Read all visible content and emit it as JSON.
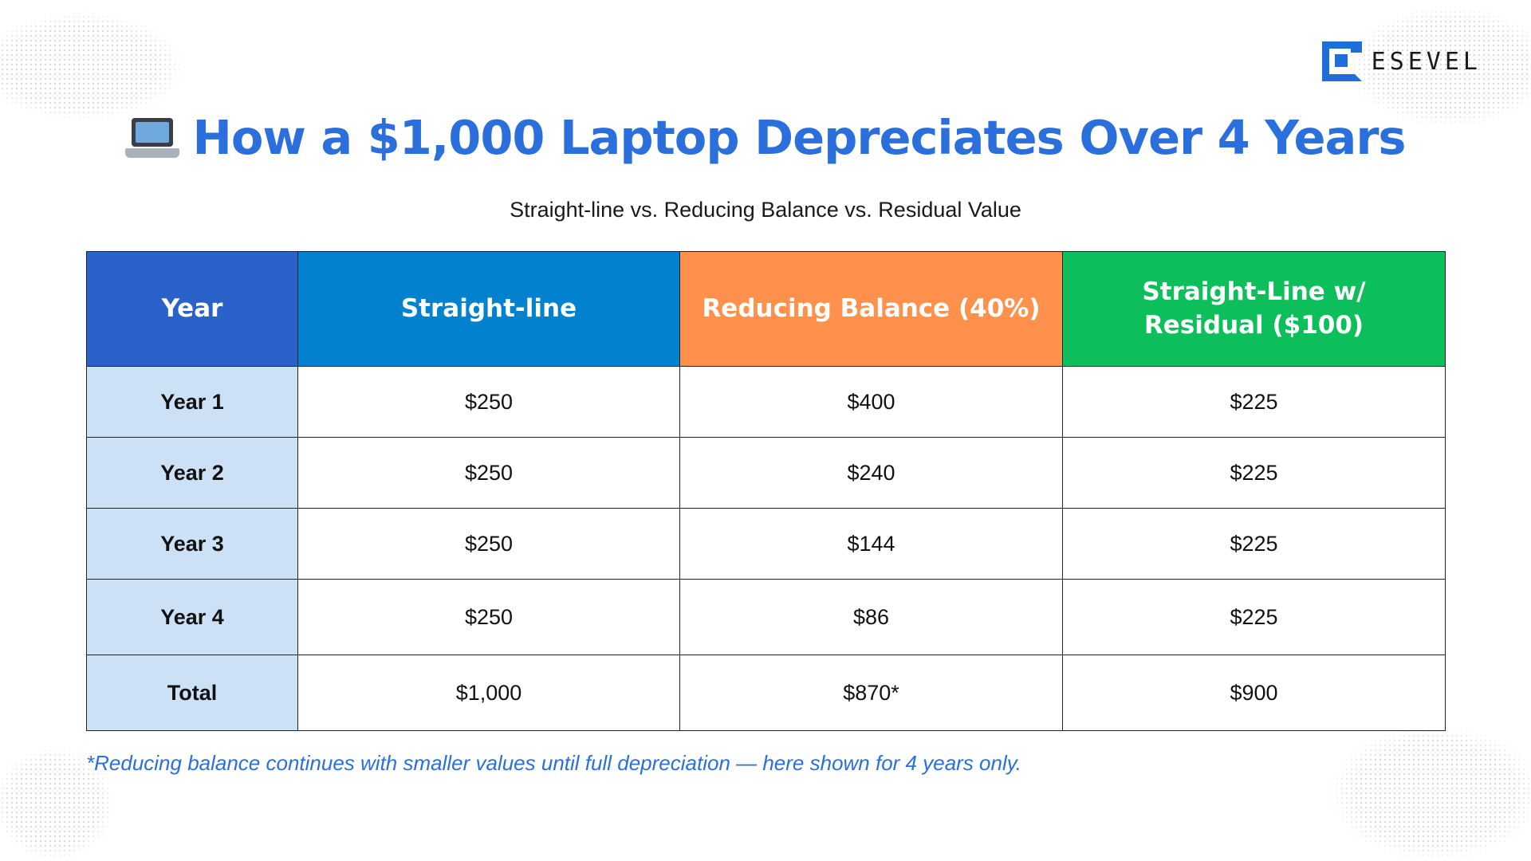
{
  "brand": {
    "logo_text": "ESEVEL",
    "accent_color": "#1e6fd9"
  },
  "title": {
    "icon": "laptop-icon",
    "text": "How a $1,000 Laptop Depreciates Over 4 Years",
    "color": "#2a6fdc"
  },
  "subtitle": "Straight-line vs. Reducing Balance vs. Residual Value",
  "table": {
    "headers": [
      {
        "label": "Year",
        "color": "#2b62c9"
      },
      {
        "label": "Straight-line",
        "color": "#0281cf"
      },
      {
        "label": "Reducing Balance (40%)",
        "color": "#ff914d"
      },
      {
        "label": "Straight-Line w/ Residual ($100)",
        "color": "#0dbf5b"
      }
    ],
    "rows": [
      {
        "year": "Year 1",
        "straight_line": "$250",
        "reducing_balance": "$400",
        "residual": "$225"
      },
      {
        "year": "Year 2",
        "straight_line": "$250",
        "reducing_balance": "$240",
        "residual": "$225"
      },
      {
        "year": "Year 3",
        "straight_line": "$250",
        "reducing_balance": "$144",
        "residual": "$225"
      },
      {
        "year": "Year 4",
        "straight_line": "$250",
        "reducing_balance": "$86",
        "residual": "$225"
      },
      {
        "year": "Total",
        "straight_line": "$1,000",
        "reducing_balance": "$870*",
        "residual": "$900"
      }
    ]
  },
  "footnote": "*Reducing balance continues with smaller values until full depreciation — here shown for 4 years only."
}
